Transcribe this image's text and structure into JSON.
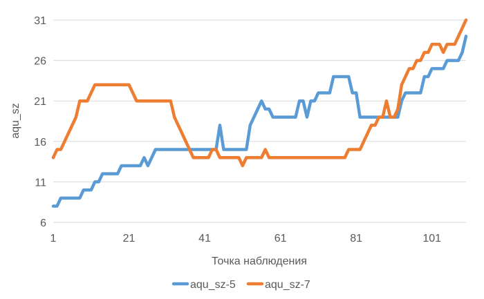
{
  "chart_data": {
    "type": "line",
    "title": "",
    "xlabel": "Точка наблюдения",
    "ylabel": "aqu_sz",
    "xlim": [
      1,
      110
    ],
    "ylim": [
      6,
      31
    ],
    "x_ticks": [
      1,
      21,
      41,
      61,
      81,
      101
    ],
    "y_ticks": [
      6,
      11,
      16,
      21,
      26,
      31
    ],
    "x_tick_labels": [
      "1",
      "21",
      "41",
      "61",
      "81",
      "101"
    ],
    "y_tick_labels": [
      "6",
      "11",
      "16",
      "21",
      "26",
      "31"
    ],
    "grid": "horizontal",
    "legend_position": "bottom",
    "series": [
      {
        "name": "aqu_sz-5",
        "color": "#5b9bd5",
        "points": [
          [
            1,
            8
          ],
          [
            2,
            8
          ],
          [
            3,
            9
          ],
          [
            4,
            9
          ],
          [
            5,
            9
          ],
          [
            6,
            9
          ],
          [
            7,
            9
          ],
          [
            8,
            9
          ],
          [
            9,
            10
          ],
          [
            10,
            10
          ],
          [
            11,
            10
          ],
          [
            12,
            11
          ],
          [
            13,
            11
          ],
          [
            14,
            12
          ],
          [
            15,
            12
          ],
          [
            16,
            12
          ],
          [
            17,
            12
          ],
          [
            18,
            12
          ],
          [
            19,
            13
          ],
          [
            20,
            13
          ],
          [
            21,
            13
          ],
          [
            22,
            13
          ],
          [
            23,
            13
          ],
          [
            24,
            13
          ],
          [
            25,
            14
          ],
          [
            26,
            13
          ],
          [
            27,
            14
          ],
          [
            28,
            15
          ],
          [
            29,
            15
          ],
          [
            30,
            15
          ],
          [
            31,
            15
          ],
          [
            32,
            15
          ],
          [
            33,
            15
          ],
          [
            34,
            15
          ],
          [
            35,
            15
          ],
          [
            36,
            15
          ],
          [
            37,
            15
          ],
          [
            38,
            15
          ],
          [
            39,
            15
          ],
          [
            40,
            15
          ],
          [
            41,
            15
          ],
          [
            42,
            15
          ],
          [
            43,
            15
          ],
          [
            44,
            15
          ],
          [
            45,
            18
          ],
          [
            46,
            15
          ],
          [
            47,
            15
          ],
          [
            48,
            15
          ],
          [
            49,
            15
          ],
          [
            50,
            15
          ],
          [
            51,
            15
          ],
          [
            52,
            15
          ],
          [
            53,
            18
          ],
          [
            54,
            19
          ],
          [
            55,
            20
          ],
          [
            56,
            21
          ],
          [
            57,
            20
          ],
          [
            58,
            20
          ],
          [
            59,
            19
          ],
          [
            60,
            19
          ],
          [
            61,
            19
          ],
          [
            62,
            19
          ],
          [
            63,
            19
          ],
          [
            64,
            19
          ],
          [
            65,
            19
          ],
          [
            66,
            21
          ],
          [
            67,
            21
          ],
          [
            68,
            19
          ],
          [
            69,
            21
          ],
          [
            70,
            21
          ],
          [
            71,
            22
          ],
          [
            72,
            22
          ],
          [
            73,
            22
          ],
          [
            74,
            22
          ],
          [
            75,
            24
          ],
          [
            76,
            24
          ],
          [
            77,
            24
          ],
          [
            78,
            24
          ],
          [
            79,
            24
          ],
          [
            80,
            22
          ],
          [
            81,
            22
          ],
          [
            82,
            19
          ],
          [
            83,
            19
          ],
          [
            84,
            19
          ],
          [
            85,
            19
          ],
          [
            86,
            19
          ],
          [
            87,
            19
          ],
          [
            88,
            19
          ],
          [
            89,
            19
          ],
          [
            90,
            19
          ],
          [
            91,
            19
          ],
          [
            92,
            19
          ],
          [
            93,
            21
          ],
          [
            94,
            22
          ],
          [
            95,
            22
          ],
          [
            96,
            22
          ],
          [
            97,
            22
          ],
          [
            98,
            22
          ],
          [
            99,
            24
          ],
          [
            100,
            24
          ],
          [
            101,
            25
          ],
          [
            102,
            25
          ],
          [
            103,
            25
          ],
          [
            104,
            25
          ],
          [
            105,
            26
          ],
          [
            106,
            26
          ],
          [
            107,
            26
          ],
          [
            108,
            26
          ],
          [
            109,
            27
          ],
          [
            110,
            29
          ]
        ]
      },
      {
        "name": "aqu_sz-7",
        "color": "#ed7d31",
        "points": [
          [
            1,
            14
          ],
          [
            2,
            15
          ],
          [
            3,
            15
          ],
          [
            4,
            16
          ],
          [
            5,
            17
          ],
          [
            6,
            18
          ],
          [
            7,
            19
          ],
          [
            8,
            21
          ],
          [
            9,
            21
          ],
          [
            10,
            21
          ],
          [
            11,
            22
          ],
          [
            12,
            23
          ],
          [
            13,
            23
          ],
          [
            14,
            23
          ],
          [
            15,
            23
          ],
          [
            16,
            23
          ],
          [
            17,
            23
          ],
          [
            18,
            23
          ],
          [
            19,
            23
          ],
          [
            20,
            23
          ],
          [
            21,
            23
          ],
          [
            22,
            22
          ],
          [
            23,
            21
          ],
          [
            24,
            21
          ],
          [
            25,
            21
          ],
          [
            26,
            21
          ],
          [
            27,
            21
          ],
          [
            28,
            21
          ],
          [
            29,
            21
          ],
          [
            30,
            21
          ],
          [
            31,
            21
          ],
          [
            32,
            21
          ],
          [
            33,
            19
          ],
          [
            34,
            18
          ],
          [
            35,
            17
          ],
          [
            36,
            16
          ],
          [
            37,
            15
          ],
          [
            38,
            14
          ],
          [
            39,
            14
          ],
          [
            40,
            14
          ],
          [
            41,
            14
          ],
          [
            42,
            14
          ],
          [
            43,
            15
          ],
          [
            44,
            15
          ],
          [
            45,
            14
          ],
          [
            46,
            14
          ],
          [
            47,
            14
          ],
          [
            48,
            14
          ],
          [
            49,
            14
          ],
          [
            50,
            14
          ],
          [
            51,
            13
          ],
          [
            52,
            14
          ],
          [
            53,
            14
          ],
          [
            54,
            14
          ],
          [
            55,
            14
          ],
          [
            56,
            14
          ],
          [
            57,
            15
          ],
          [
            58,
            14
          ],
          [
            59,
            14
          ],
          [
            60,
            14
          ],
          [
            61,
            14
          ],
          [
            62,
            14
          ],
          [
            63,
            14
          ],
          [
            64,
            14
          ],
          [
            65,
            14
          ],
          [
            66,
            14
          ],
          [
            67,
            14
          ],
          [
            68,
            14
          ],
          [
            69,
            14
          ],
          [
            70,
            14
          ],
          [
            71,
            14
          ],
          [
            72,
            14
          ],
          [
            73,
            14
          ],
          [
            74,
            14
          ],
          [
            75,
            14
          ],
          [
            76,
            14
          ],
          [
            77,
            14
          ],
          [
            78,
            14
          ],
          [
            79,
            15
          ],
          [
            80,
            15
          ],
          [
            81,
            15
          ],
          [
            82,
            15
          ],
          [
            83,
            16
          ],
          [
            84,
            17
          ],
          [
            85,
            18
          ],
          [
            86,
            18
          ],
          [
            87,
            19
          ],
          [
            88,
            19
          ],
          [
            89,
            21
          ],
          [
            90,
            19
          ],
          [
            91,
            19
          ],
          [
            92,
            20
          ],
          [
            93,
            23
          ],
          [
            94,
            24
          ],
          [
            95,
            25
          ],
          [
            96,
            25
          ],
          [
            97,
            26
          ],
          [
            98,
            26
          ],
          [
            99,
            27
          ],
          [
            100,
            27
          ],
          [
            101,
            28
          ],
          [
            102,
            28
          ],
          [
            103,
            28
          ],
          [
            104,
            27
          ],
          [
            105,
            28
          ],
          [
            106,
            28
          ],
          [
            107,
            28
          ],
          [
            108,
            29
          ],
          [
            109,
            30
          ],
          [
            110,
            31
          ]
        ]
      }
    ]
  }
}
